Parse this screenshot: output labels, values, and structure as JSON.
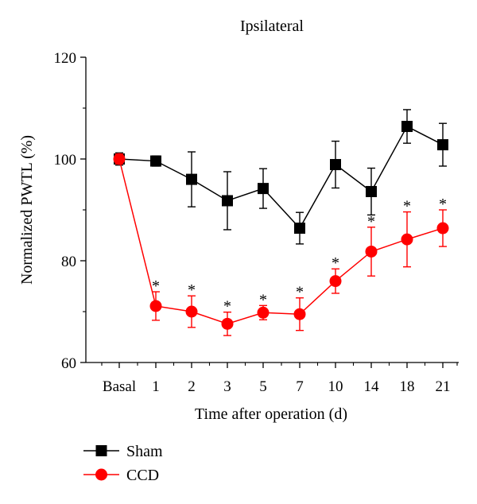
{
  "chart_data": {
    "type": "line",
    "title": "Ipsilateral",
    "xlabel": "Time after operation (d)",
    "ylabel": "Normalized PWTL (%)",
    "categories": [
      "Basal",
      "1",
      "2",
      "3",
      "5",
      "7",
      "10",
      "14",
      "18",
      "21"
    ],
    "ylim": [
      60,
      120
    ],
    "yticks": [
      "60",
      "80",
      "100",
      "120"
    ],
    "grid": false,
    "legend_placement": "bottom-left",
    "significance_marker": "*",
    "series": [
      {
        "name": "Sham",
        "color": "#000000",
        "marker": "square",
        "values": [
          100,
          99.6,
          96,
          91.8,
          94.2,
          86.4,
          98.9,
          93.6,
          106.4,
          102.8
        ],
        "errors": [
          1.2,
          1.0,
          5.4,
          5.7,
          3.9,
          3.1,
          4.6,
          4.6,
          3.3,
          4.2
        ],
        "significant": [
          false,
          false,
          false,
          false,
          false,
          false,
          false,
          false,
          false,
          false
        ]
      },
      {
        "name": "CCD",
        "color": "#ff0000",
        "marker": "circle",
        "values": [
          100,
          71.1,
          70.0,
          67.6,
          69.8,
          69.5,
          76.0,
          81.8,
          84.2,
          86.4
        ],
        "errors": [
          1.0,
          2.8,
          3.1,
          2.3,
          1.4,
          3.2,
          2.4,
          4.8,
          5.4,
          3.6
        ],
        "significant": [
          false,
          true,
          true,
          true,
          true,
          true,
          true,
          true,
          true,
          true
        ]
      }
    ]
  }
}
